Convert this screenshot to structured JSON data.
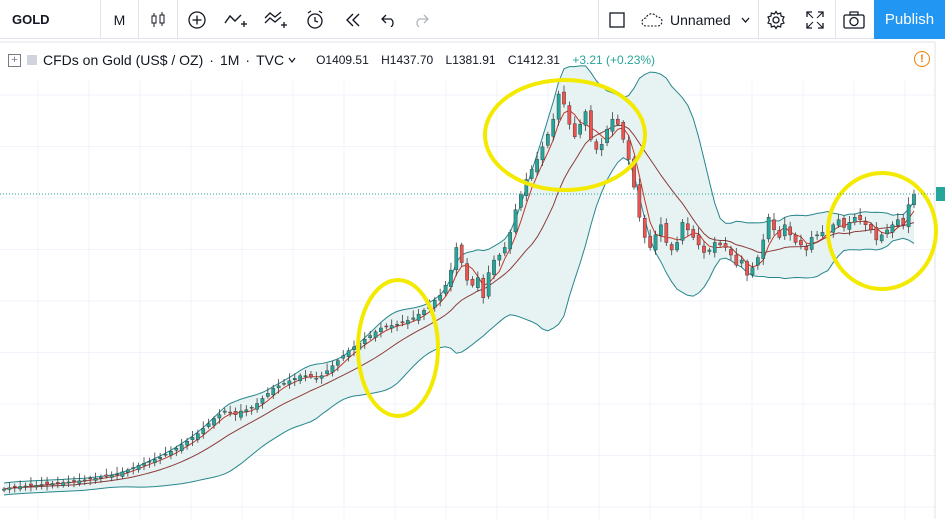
{
  "toolbar": {
    "symbol": "GOLD",
    "interval": "M",
    "layout_name": "Unnamed",
    "publish_label": "Publish",
    "icons": [
      "candles-icon",
      "add-indicator-icon",
      "indicators-icon",
      "compare-icon",
      "alert-icon",
      "replay-icon",
      "undo-icon",
      "redo-icon",
      "fullscreen-square-icon",
      "cloud-icon",
      "gear-icon",
      "fullscreen-icon",
      "camera-icon"
    ]
  },
  "legend": {
    "title": "CFDs on Gold (US$ / OZ)",
    "interval": "1M",
    "source": "TVC",
    "open": "O1409.51",
    "high": "H1437.70",
    "low": "L1381.91",
    "close": "C1412.31",
    "change": "+3.21 (+0.23%)"
  },
  "colors": {
    "up": "#26a69a",
    "down": "#ef5350",
    "band": "#26868c",
    "band_fill": "#e7f3f3",
    "ma_red": "#c0392b",
    "ma_brown": "#8d3b3b",
    "highlight": "#f3ea00",
    "accent": "#2196f3"
  },
  "chart_data": {
    "type": "candlestick",
    "series": [
      {
        "name": "price",
        "values": [
          250,
          255,
          258,
          260,
          262,
          264,
          265,
          268,
          270,
          272,
          274,
          276,
          278,
          280,
          283,
          286,
          290,
          293,
          296,
          300,
          305,
          310,
          318,
          326,
          335,
          344,
          352,
          360,
          368,
          376,
          388,
          400,
          412,
          426,
          440,
          455,
          470,
          490,
          510,
          530,
          545,
          560,
          555,
          545,
          560,
          565,
          575,
          590,
          610,
          630,
          650,
          660,
          670,
          680,
          690,
          700,
          700,
          695,
          690,
          700,
          720,
          740,
          760,
          780,
          800,
          815,
          830,
          845,
          860,
          875,
          890,
          895,
          900,
          905,
          910,
          920,
          930,
          945,
          960,
          980,
          1000,
          1020,
          1060,
          1120,
          1210,
          1150,
          1080,
          1060,
          1090,
          1010,
          1110,
          1160,
          1180,
          1210,
          1270,
          1360,
          1420,
          1480,
          1520,
          1560,
          1610,
          1660,
          1720,
          1820,
          1780,
          1700,
          1650,
          1700,
          1750,
          1640,
          1600,
          1620,
          1680,
          1720,
          1700,
          1640,
          1560,
          1450,
          1330,
          1250,
          1210,
          1260,
          1300,
          1230,
          1200,
          1230,
          1310,
          1280,
          1250,
          1220,
          1190,
          1200,
          1230,
          1220,
          1210,
          1180,
          1140,
          1160,
          1100,
          1130,
          1170,
          1240,
          1330,
          1280,
          1250,
          1300,
          1260,
          1230,
          1220,
          1200,
          1250,
          1260,
          1270,
          1280,
          1300,
          1320,
          1290,
          1310,
          1330,
          1320,
          1300,
          1280,
          1240,
          1260,
          1280,
          1300,
          1320,
          1300,
          1380,
          1420
        ]
      }
    ],
    "indicators": [
      "Bollinger Bands",
      "moving average (red)",
      "moving average (brown)"
    ],
    "annotations": [
      "highlight-circle",
      "highlight-circle",
      "highlight-circle"
    ]
  }
}
